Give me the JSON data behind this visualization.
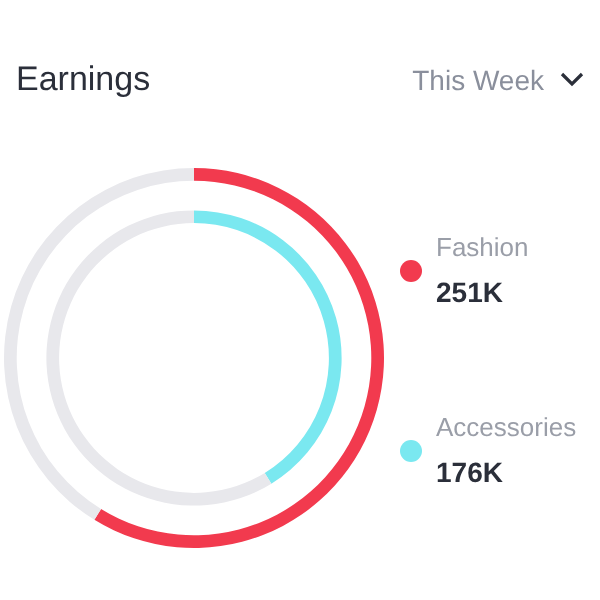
{
  "chart_data": {
    "type": "other",
    "title": "Earnings",
    "annotations": [
      "This Week"
    ],
    "categories": [
      "Fashion",
      "Accessories"
    ],
    "values": [
      251,
      176
    ],
    "value_labels": [
      "251K",
      "176K"
    ],
    "colors": [
      "#f23a4e",
      "#7ae8f0"
    ],
    "legend": false
  }
}
